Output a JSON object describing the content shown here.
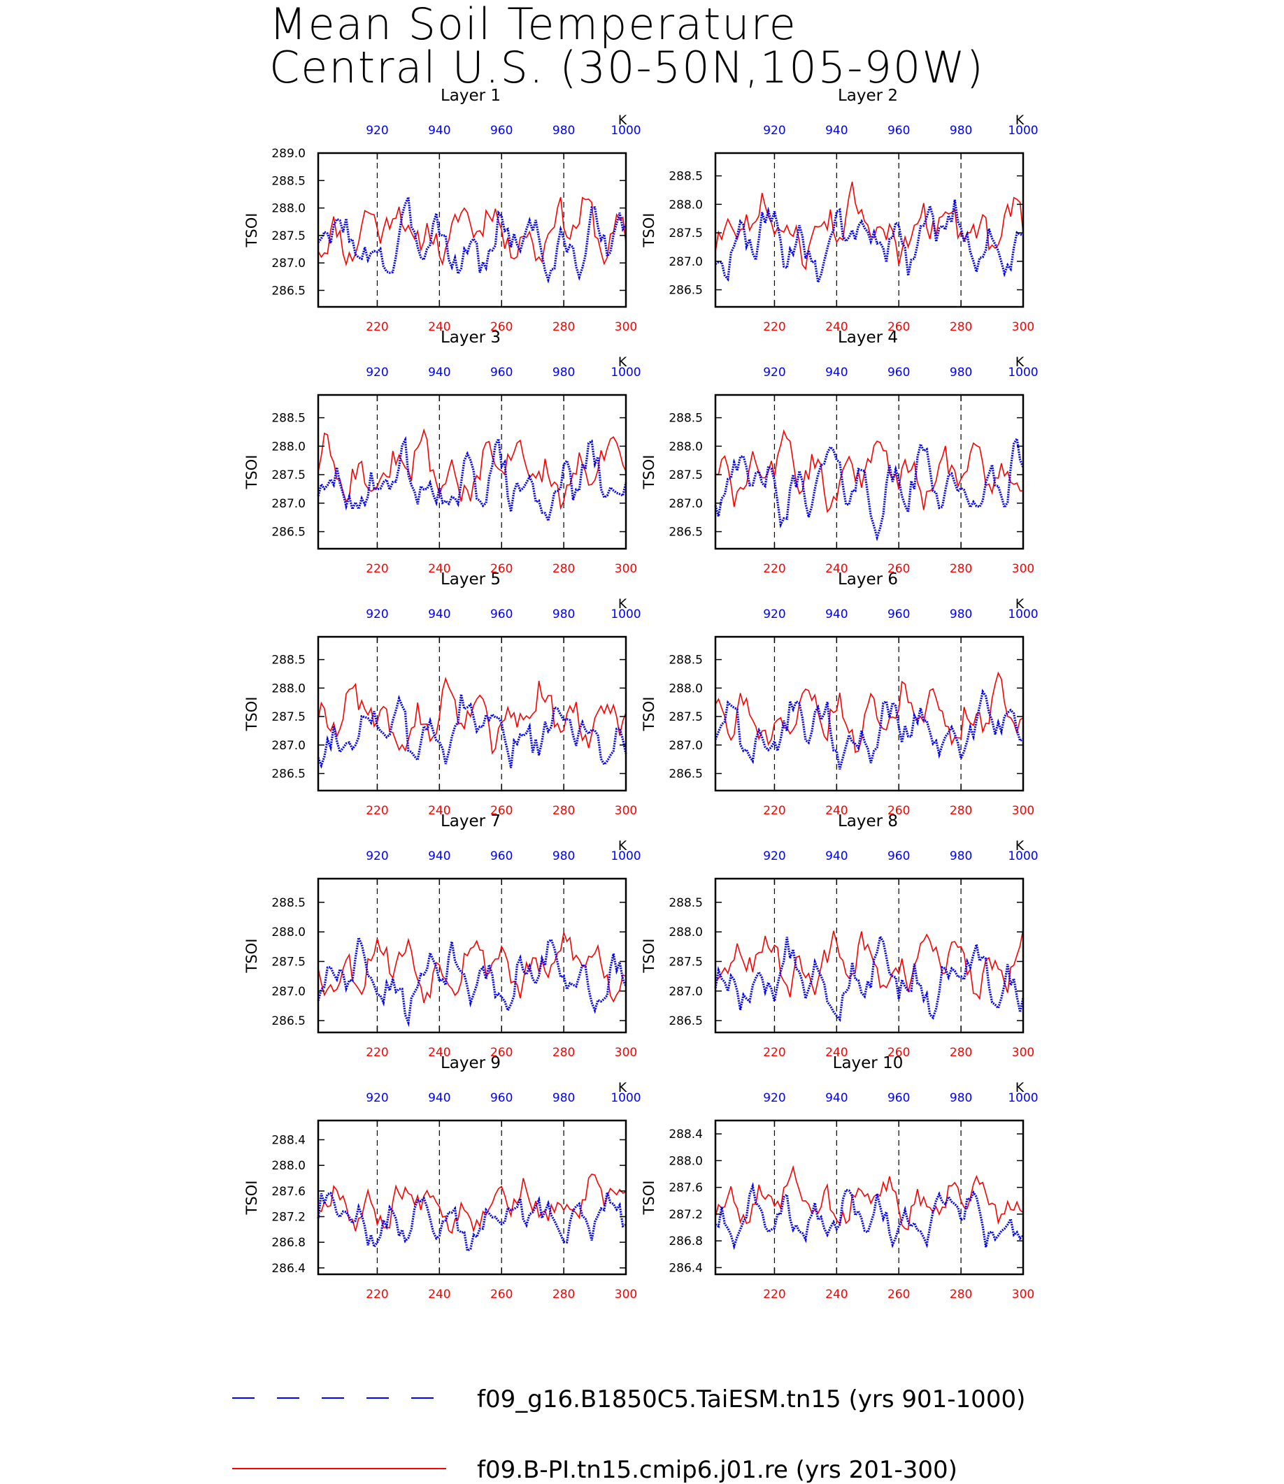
{
  "title_line1": "Mean Soil Temperature",
  "title_line2": "Central U.S. (30-50N,105-90W)",
  "legend": [
    {
      "label": "f09_g16.B1850C5.TaiESM.tn15 (yrs 901-1000)",
      "color": "#0000ff",
      "style": "dashed"
    },
    {
      "label": "f09.B-PI.tn15.cmip6.j01.re (yrs 201-300)",
      "color": "#ff0000",
      "style": "solid"
    }
  ],
  "chart_data": {
    "type": "line",
    "panel_count": 10,
    "ylabel": "TSOI",
    "bottom_axis": {
      "color": "#ff0000",
      "range": [
        201,
        300
      ],
      "ticks": [
        220,
        240,
        260,
        280,
        300
      ]
    },
    "top_axis": {
      "color": "#0000ff",
      "range": [
        901,
        1000
      ],
      "ticks": [
        920,
        940,
        960,
        980,
        1000
      ],
      "ticklabels": [
        "920",
        "940",
        "960",
        "980",
        "1000"
      ],
      "unit": "K"
    },
    "vertical_reference_lines": [
      220,
      240,
      260,
      280
    ],
    "panels": [
      {
        "title": "Layer 1",
        "ylim": [
          286.2,
          289.0
        ],
        "yticks": [
          "289.0",
          "288.5",
          "288.0",
          "287.5",
          "287.0",
          "286.5"
        ],
        "ytick_values": [
          289.0,
          288.5,
          288.0,
          287.5,
          287.0,
          286.5
        ],
        "blue_mean": 287.35,
        "blue_amp": 0.8,
        "red_mean": 287.6,
        "red_amp": 0.75
      },
      {
        "title": "Layer 2",
        "ylim": [
          286.2,
          288.9
        ],
        "yticks": [
          "288.5",
          "288.0",
          "287.5",
          "287.0",
          "286.5"
        ],
        "ytick_values": [
          288.5,
          288.0,
          287.5,
          287.0,
          286.5
        ],
        "blue_mean": 287.35,
        "blue_amp": 0.8,
        "red_mean": 287.6,
        "red_amp": 0.75
      },
      {
        "title": "Layer 3",
        "ylim": [
          286.2,
          288.9
        ],
        "yticks": [
          "288.5",
          "288.0",
          "287.5",
          "287.0",
          "286.5"
        ],
        "ytick_values": [
          288.5,
          288.0,
          287.5,
          287.0,
          286.5
        ],
        "blue_mean": 287.3,
        "blue_amp": 0.78,
        "red_mean": 287.55,
        "red_amp": 0.72
      },
      {
        "title": "Layer 4",
        "ylim": [
          286.2,
          288.9
        ],
        "yticks": [
          "288.5",
          "288.0",
          "287.5",
          "287.0",
          "286.5"
        ],
        "ytick_values": [
          288.5,
          288.0,
          287.5,
          287.0,
          286.5
        ],
        "blue_mean": 287.3,
        "blue_amp": 0.78,
        "red_mean": 287.55,
        "red_amp": 0.72
      },
      {
        "title": "Layer 5",
        "ylim": [
          286.2,
          288.9
        ],
        "yticks": [
          "288.5",
          "288.0",
          "287.5",
          "287.0",
          "286.5"
        ],
        "ytick_values": [
          288.5,
          288.0,
          287.5,
          287.0,
          286.5
        ],
        "blue_mean": 287.25,
        "blue_amp": 0.75,
        "red_mean": 287.5,
        "red_amp": 0.7
      },
      {
        "title": "Layer 6",
        "ylim": [
          286.2,
          288.9
        ],
        "yticks": [
          "288.5",
          "288.0",
          "287.5",
          "287.0",
          "286.5"
        ],
        "ytick_values": [
          288.5,
          288.0,
          287.5,
          287.0,
          286.5
        ],
        "blue_mean": 287.25,
        "blue_amp": 0.75,
        "red_mean": 287.5,
        "red_amp": 0.7
      },
      {
        "title": "Layer 7",
        "ylim": [
          286.3,
          288.9
        ],
        "yticks": [
          "288.5",
          "288.0",
          "287.5",
          "287.0",
          "286.5"
        ],
        "ytick_values": [
          288.5,
          288.0,
          287.5,
          287.0,
          286.5
        ],
        "blue_mean": 287.2,
        "blue_amp": 0.7,
        "red_mean": 287.45,
        "red_amp": 0.65
      },
      {
        "title": "Layer 8",
        "ylim": [
          286.3,
          288.9
        ],
        "yticks": [
          "288.5",
          "288.0",
          "287.5",
          "287.0",
          "286.5"
        ],
        "ytick_values": [
          288.5,
          288.0,
          287.5,
          287.0,
          286.5
        ],
        "blue_mean": 287.2,
        "blue_amp": 0.7,
        "red_mean": 287.45,
        "red_amp": 0.65
      },
      {
        "title": "Layer 9",
        "ylim": [
          286.3,
          288.7
        ],
        "yticks": [
          "288.4",
          "288.0",
          "287.6",
          "287.2",
          "286.8",
          "286.4"
        ],
        "ytick_values": [
          288.4,
          288.0,
          287.6,
          287.2,
          286.8,
          286.4
        ],
        "blue_mean": 287.15,
        "blue_amp": 0.55,
        "red_mean": 287.4,
        "red_amp": 0.5
      },
      {
        "title": "Layer 10",
        "ylim": [
          286.3,
          288.6
        ],
        "yticks": [
          "288.4",
          "288.0",
          "287.6",
          "287.2",
          "286.8",
          "286.4"
        ],
        "ytick_values": [
          288.4,
          288.0,
          287.6,
          287.2,
          286.8,
          286.4
        ],
        "blue_mean": 287.15,
        "blue_amp": 0.5,
        "red_mean": 287.4,
        "red_amp": 0.48
      }
    ]
  }
}
